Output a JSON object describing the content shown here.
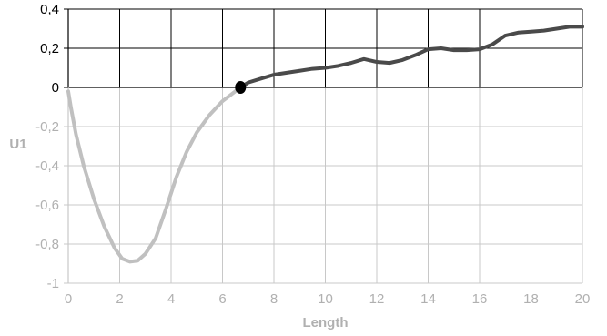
{
  "chart_data": {
    "type": "line",
    "title": "",
    "xlabel": "Length",
    "ylabel": "U1",
    "xlim": [
      0,
      20
    ],
    "ylim": [
      -1,
      0.4
    ],
    "x_ticks": [
      "0",
      "2",
      "4",
      "6",
      "8",
      "10",
      "12",
      "14",
      "16",
      "18",
      "20"
    ],
    "y_ticks": [
      "0,4",
      "0,2",
      "0",
      "-0,2",
      "-0,4",
      "-0,6",
      "-0,8",
      "-1"
    ],
    "grid": true,
    "legend": "none",
    "colors": {
      "upper_region_text": "#000000",
      "lower_region_text": "#b0b0b0",
      "upper_grid": "#000000",
      "lower_grid": "#c8c8c8",
      "series_left": "#c0c0c0",
      "series_right": "#4a4a4a",
      "marker": "#000000"
    },
    "series": [
      {
        "role": "left-segment",
        "color": "#c0c0c0",
        "x": [
          0,
          0.1,
          0.3,
          0.6,
          1.0,
          1.4,
          1.8,
          2.1,
          2.4,
          2.7,
          3.0,
          3.4,
          3.8,
          4.2,
          4.6,
          5.0,
          5.5,
          6.0,
          6.4,
          6.7
        ],
        "y": [
          -0.02,
          -0.1,
          -0.24,
          -0.4,
          -0.57,
          -0.71,
          -0.82,
          -0.875,
          -0.89,
          -0.885,
          -0.85,
          -0.77,
          -0.62,
          -0.46,
          -0.33,
          -0.23,
          -0.14,
          -0.07,
          -0.03,
          0.0
        ]
      },
      {
        "role": "right-segment",
        "color": "#4a4a4a",
        "x": [
          6.7,
          7.0,
          7.5,
          8.0,
          8.5,
          9.0,
          9.5,
          10.0,
          10.5,
          11.0,
          11.5,
          12.0,
          12.5,
          13.0,
          13.5,
          14.0,
          14.5,
          15.0,
          15.5,
          16.0,
          16.5,
          17.0,
          17.5,
          18.0,
          18.5,
          19.0,
          19.5,
          20.0
        ],
        "y": [
          0.0,
          0.025,
          0.045,
          0.065,
          0.075,
          0.085,
          0.095,
          0.1,
          0.11,
          0.125,
          0.145,
          0.13,
          0.125,
          0.14,
          0.165,
          0.195,
          0.2,
          0.19,
          0.19,
          0.195,
          0.22,
          0.265,
          0.28,
          0.285,
          0.29,
          0.3,
          0.31,
          0.31
        ]
      }
    ],
    "marker": {
      "x": 6.7,
      "y": 0.0
    }
  }
}
